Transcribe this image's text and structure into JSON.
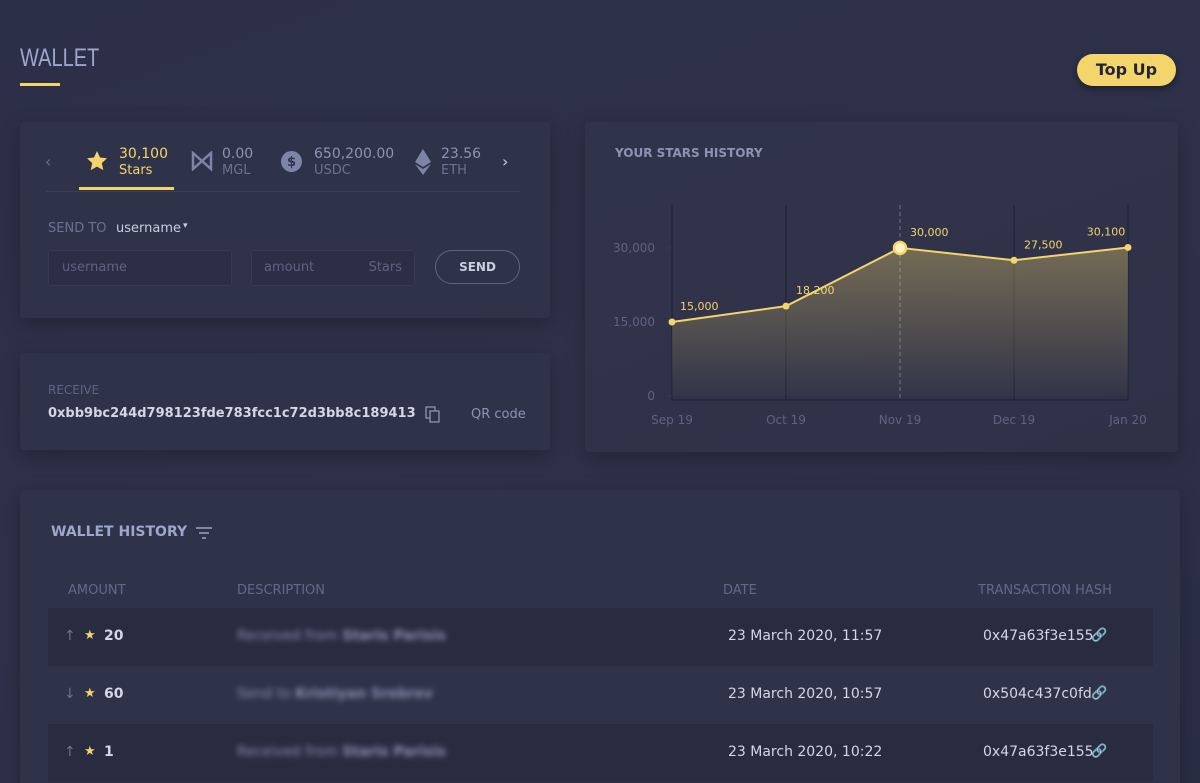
{
  "header": {
    "title": "WALLET",
    "top_up": "Top Up"
  },
  "balances": [
    {
      "amount": "30,100",
      "unit": "Stars"
    },
    {
      "amount": "0.00",
      "unit": "MGL"
    },
    {
      "amount": "650,200.00",
      "unit": "USDC"
    },
    {
      "amount": "23.56",
      "unit": "ETH"
    }
  ],
  "send": {
    "label": "SEND TO",
    "recipient_type": "username",
    "username_placeholder": "username",
    "amount_placeholder": "amount",
    "amount_unit": "Stars",
    "button": "SEND"
  },
  "receive": {
    "label": "RECEIVE",
    "address": "0xbb9bc244d798123fde783fcc1c72d3bb8c189413",
    "qr": "QR code"
  },
  "history": {
    "title": "WALLET HISTORY",
    "columns": [
      "AMOUNT",
      "DESCRIPTION",
      "DATE",
      "TRANSACTION HASH"
    ],
    "rows": [
      {
        "amount": "20",
        "description": "Received from",
        "name": "Staris Parisis",
        "date": "23 March 2020, 11:57",
        "hash": "0x47a63f3e155"
      },
      {
        "amount": "60",
        "description": "Send to",
        "name": "Kristiyan Srebrev",
        "date": "23 March 2020, 10:57",
        "hash": "0x504c437c0fd"
      },
      {
        "amount": "1",
        "description": "Received from",
        "name": "Staris Parisis",
        "date": "23 March 2020, 10:22",
        "hash": "0x47a63f3e155"
      }
    ]
  },
  "chart_data": {
    "type": "area",
    "title": "YOUR STARS HISTORY",
    "categories": [
      "Sep 19",
      "Oct 19",
      "Nov 19",
      "Dec 19",
      "Jan 20"
    ],
    "values": [
      15000,
      18200,
      30000,
      27500,
      30100
    ],
    "value_labels": [
      "15,000",
      "18,200",
      "30,000",
      "27,500",
      "30,100"
    ],
    "color": "#f3d56b",
    "ylim": [
      0,
      38700
    ],
    "yticks": [
      0,
      {
        "value": 15000,
        "label": "15,000"
      },
      {
        "value": 30000,
        "label": "30,000"
      }
    ],
    "highlight": "Nov 19"
  }
}
